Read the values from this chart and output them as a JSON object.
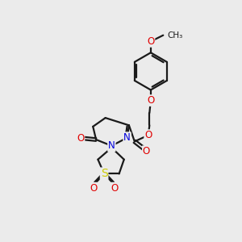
{
  "background_color": "#ebebeb",
  "bond_color": "#1a1a1a",
  "atom_colors": {
    "O": "#e00000",
    "N": "#0000dd",
    "S": "#cccc00",
    "C": "#1a1a1a"
  },
  "figsize": [
    3.0,
    3.0
  ],
  "dpi": 100,
  "lw": 1.6,
  "fs": 8.5
}
